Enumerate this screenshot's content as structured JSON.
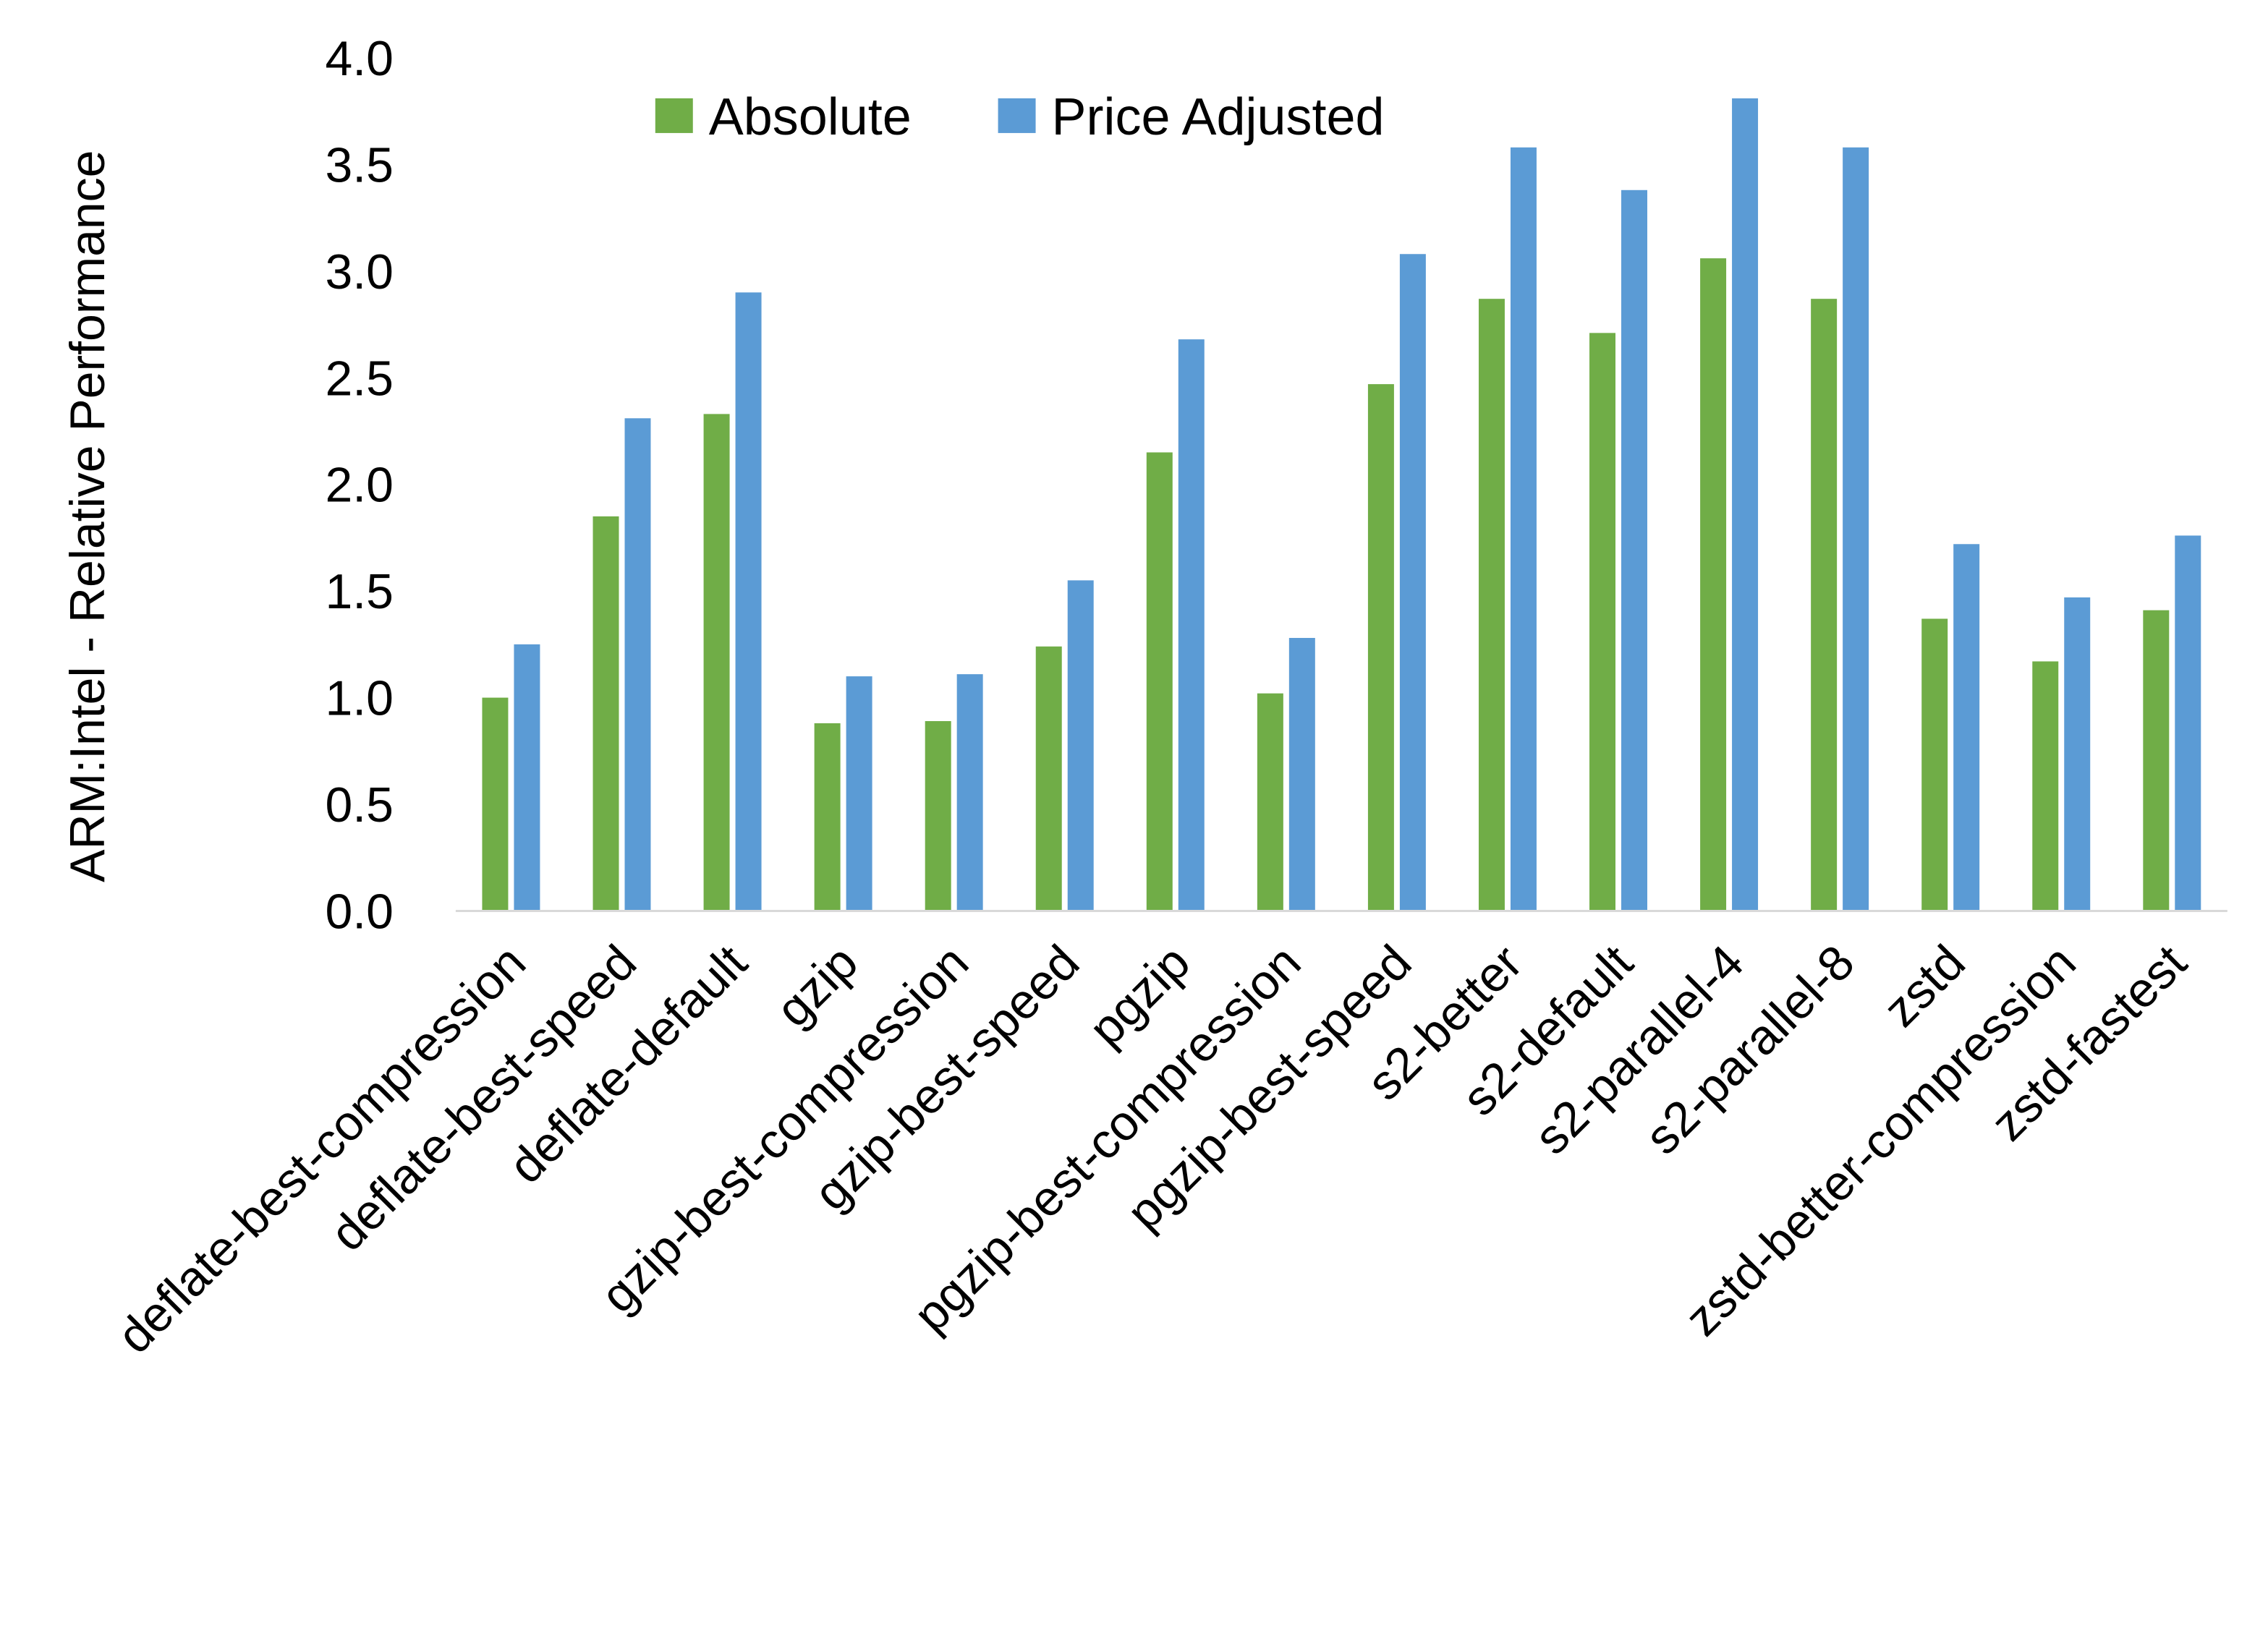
{
  "chart_data": {
    "type": "bar",
    "title": "",
    "xlabel": "",
    "ylabel": "ARM:Intel - Relative Performance",
    "ylim": [
      0,
      4.0
    ],
    "yticks": [
      "0.0",
      "0.5",
      "1.0",
      "1.5",
      "2.0",
      "2.5",
      "3.0",
      "3.5",
      "4.0"
    ],
    "grid": false,
    "legend_placement": "top-center",
    "categories": [
      "deflate-best-compression",
      "deflate-best-speed",
      "deflate-default",
      "gzip",
      "gzip-best-compression",
      "gzip-best-speed",
      "pgzip",
      "pgzip-best-compression",
      "pgzip-best-speed",
      "s2-better",
      "s2-default",
      "s2-parallel-4",
      "s2-parallel-8",
      "zstd",
      "zstd-better-compression",
      "zstd-fastest"
    ],
    "series": [
      {
        "name": "Absolute",
        "color": "#70AD47",
        "values": [
          1.0,
          1.85,
          2.33,
          0.88,
          0.89,
          1.24,
          2.15,
          1.02,
          2.47,
          2.87,
          2.71,
          3.06,
          2.87,
          1.37,
          1.17,
          1.41
        ]
      },
      {
        "name": "Price Adjusted",
        "color": "#5B9BD5",
        "values": [
          1.25,
          2.31,
          2.9,
          1.1,
          1.11,
          1.55,
          2.68,
          1.28,
          3.08,
          3.58,
          3.38,
          3.81,
          3.58,
          1.72,
          1.47,
          1.76
        ]
      }
    ]
  }
}
